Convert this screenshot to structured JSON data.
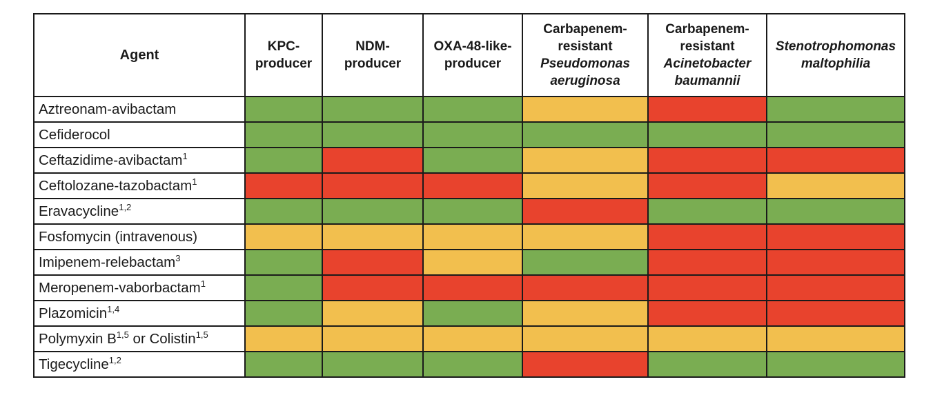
{
  "colors": {
    "green": "#7aad52",
    "yellow": "#f2bf4e",
    "red": "#e8432d"
  },
  "header": {
    "agent": "Agent",
    "columns": [
      {
        "lines": [
          "KPC-",
          "producer"
        ],
        "italic": [
          false,
          false
        ]
      },
      {
        "lines": [
          "NDM-",
          "producer"
        ],
        "italic": [
          false,
          false
        ]
      },
      {
        "lines": [
          "OXA-48-like-",
          "producer"
        ],
        "italic": [
          false,
          false
        ]
      },
      {
        "lines": [
          "Carbapenem-",
          "resistant",
          "Pseudomonas",
          "aeruginosa"
        ],
        "italic": [
          false,
          false,
          true,
          true
        ]
      },
      {
        "lines": [
          "Carbapenem-",
          "resistant",
          "Acinetobacter",
          "baumannii"
        ],
        "italic": [
          false,
          false,
          true,
          true
        ]
      },
      {
        "lines": [
          "Stenotrophomonas",
          "maltophilia"
        ],
        "italic": [
          true,
          true
        ]
      }
    ]
  },
  "rows": [
    {
      "agent": [
        {
          "t": "Aztreonam-avibactam"
        }
      ],
      "cells": [
        "green",
        "green",
        "green",
        "yellow",
        "red",
        "green"
      ]
    },
    {
      "agent": [
        {
          "t": "Cefiderocol"
        }
      ],
      "cells": [
        "green",
        "green",
        "green",
        "green",
        "green",
        "green"
      ]
    },
    {
      "agent": [
        {
          "t": "Ceftazidime-avibactam"
        },
        {
          "sup": "1"
        }
      ],
      "cells": [
        "green",
        "red",
        "green",
        "yellow",
        "red",
        "red"
      ]
    },
    {
      "agent": [
        {
          "t": "Ceftolozane-tazobactam"
        },
        {
          "sup": "1"
        }
      ],
      "cells": [
        "red",
        "red",
        "red",
        "yellow",
        "red",
        "yellow"
      ]
    },
    {
      "agent": [
        {
          "t": "Eravacycline"
        },
        {
          "sup": "1,2"
        }
      ],
      "cells": [
        "green",
        "green",
        "green",
        "red",
        "green",
        "green"
      ]
    },
    {
      "agent": [
        {
          "t": "Fosfomycin (intravenous)"
        }
      ],
      "cells": [
        "yellow",
        "yellow",
        "yellow",
        "yellow",
        "red",
        "red"
      ]
    },
    {
      "agent": [
        {
          "t": "Imipenem-relebactam"
        },
        {
          "sup": "3"
        }
      ],
      "cells": [
        "green",
        "red",
        "yellow",
        "green",
        "red",
        "red"
      ]
    },
    {
      "agent": [
        {
          "t": "Meropenem-vaborbactam"
        },
        {
          "sup": "1"
        }
      ],
      "cells": [
        "green",
        "red",
        "red",
        "red",
        "red",
        "red"
      ]
    },
    {
      "agent": [
        {
          "t": "Plazomicin"
        },
        {
          "sup": "1,4"
        }
      ],
      "cells": [
        "green",
        "yellow",
        "green",
        "yellow",
        "red",
        "red"
      ]
    },
    {
      "agent": [
        {
          "t": "Polymyxin B"
        },
        {
          "sup": "1,5"
        },
        {
          "t": " or Colistin"
        },
        {
          "sup": "1,5"
        }
      ],
      "cells": [
        "yellow",
        "yellow",
        "yellow",
        "yellow",
        "yellow",
        "yellow"
      ]
    },
    {
      "agent": [
        {
          "t": "Tigecycline"
        },
        {
          "sup": "1,2"
        }
      ],
      "cells": [
        "green",
        "green",
        "green",
        "red",
        "green",
        "green"
      ]
    }
  ]
}
